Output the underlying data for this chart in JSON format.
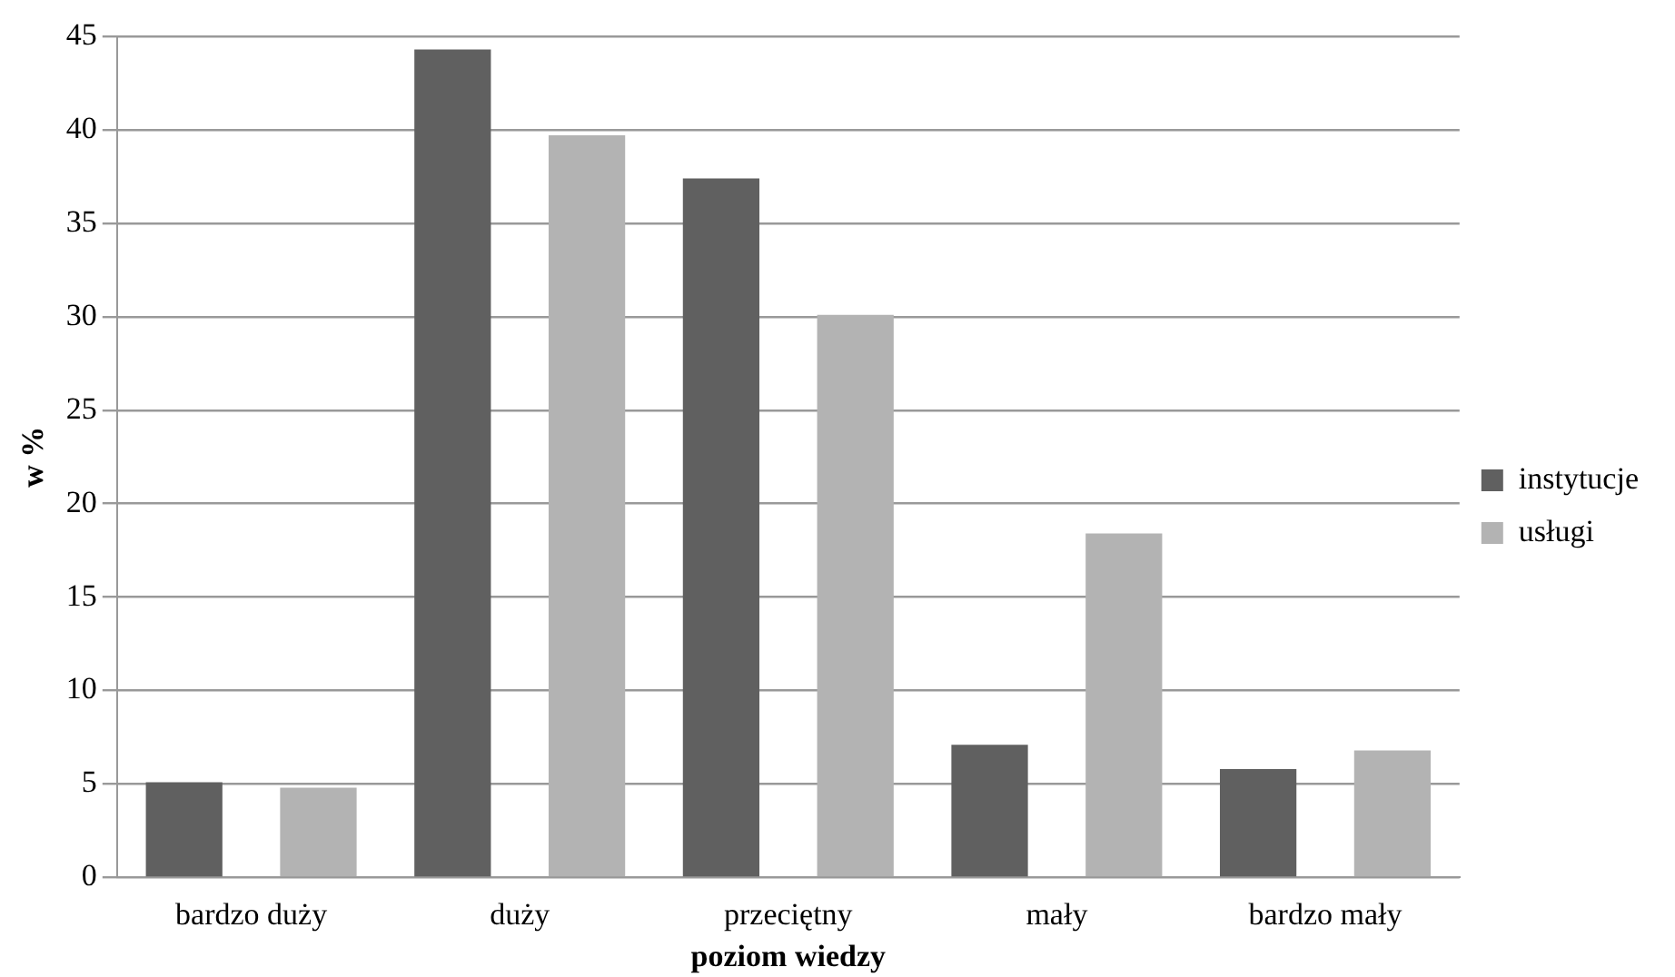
{
  "chart_data": {
    "type": "bar",
    "xlabel": "poziom wiedzy",
    "ylabel": "w %",
    "categories": [
      "bardzo duży",
      "duży",
      "przeciętny",
      "mały",
      "bardzo mały"
    ],
    "series": [
      {
        "name": "instytucje",
        "color": "#606060",
        "values": [
          5.1,
          44.3,
          37.4,
          7.1,
          5.8
        ]
      },
      {
        "name": "usługi",
        "color": "#b3b3b3",
        "values": [
          4.8,
          39.7,
          30.1,
          18.4,
          6.8
        ]
      }
    ],
    "ylim": [
      0,
      45
    ],
    "yticks": [
      0,
      5,
      10,
      15,
      20,
      25,
      30,
      35,
      40,
      45
    ],
    "grid": "y",
    "legend": "right"
  }
}
